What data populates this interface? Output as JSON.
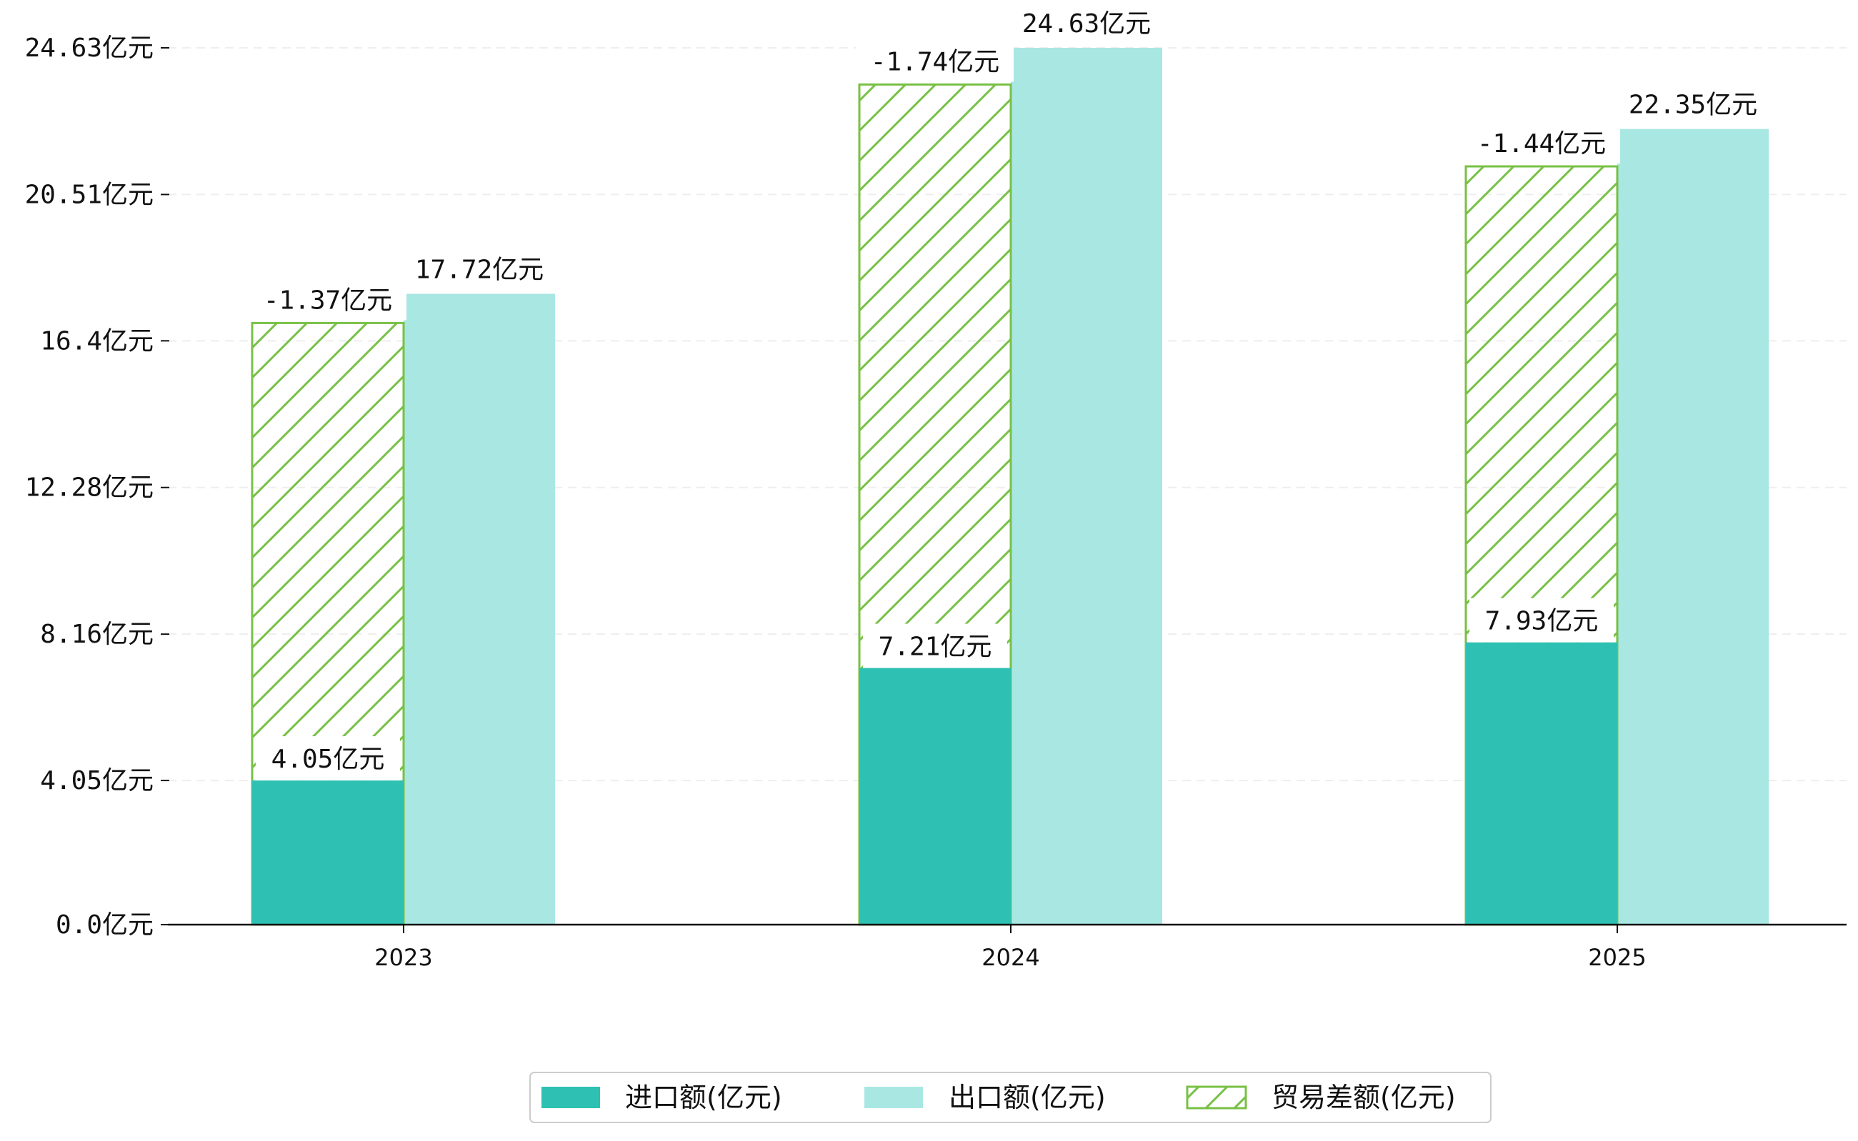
{
  "chart_data": {
    "type": "bar",
    "categories": [
      "2023",
      "2024",
      "2025"
    ],
    "series": [
      {
        "name": "进口额(亿元)",
        "values": [
          4.05,
          7.21,
          7.93
        ],
        "color": "#2ec0b2"
      },
      {
        "name": "出口额(亿元)",
        "values": [
          17.72,
          24.63,
          22.35
        ],
        "color": "#a9e7e2"
      },
      {
        "name": "贸易差额(亿元)",
        "values": [
          -1.37,
          -1.74,
          -1.44
        ],
        "color": "#78c046"
      }
    ],
    "trade_balance_display_top": [
      16.9,
      23.6,
      21.3
    ],
    "value_labels": {
      "import": [
        "4.05亿元",
        "7.21亿元",
        "7.93亿元"
      ],
      "export": [
        "17.72亿元",
        "24.63亿元",
        "22.35亿元"
      ],
      "balance": [
        "-1.37亿元",
        "-1.74亿元",
        "-1.44亿元"
      ]
    },
    "y_ticks": [
      0.0,
      4.05,
      8.16,
      12.28,
      16.4,
      20.51,
      24.63
    ],
    "y_tick_labels": [
      "0.0亿元",
      "4.05亿元",
      "8.16亿元",
      "12.28亿元",
      "16.4亿元",
      "20.51亿元",
      "24.63亿元"
    ],
    "ylim": [
      0,
      24.63
    ],
    "grid": "horizontal-dashed",
    "legend_position": "bottom-center"
  }
}
